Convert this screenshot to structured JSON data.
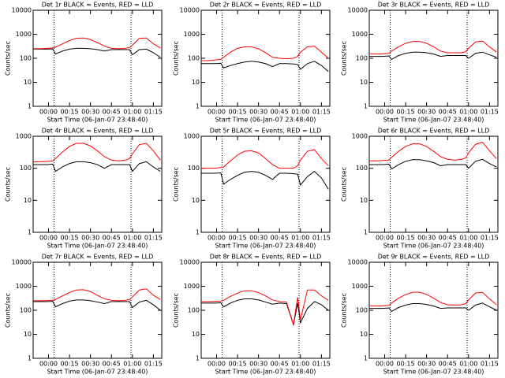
{
  "chart_data": [
    {
      "type": "line",
      "title": "Det 1r BLACK = Events, RED = LLD",
      "xlabel": "Start Time (06-Jan-07 23:48:40)",
      "ylabel": "Counts/sec",
      "log": true,
      "x": [
        -11,
        -6,
        -1,
        3,
        5,
        10,
        15,
        20,
        25,
        30,
        35,
        40,
        45,
        50,
        55,
        58,
        60,
        65,
        70,
        75,
        80
      ],
      "series": [
        {
          "color": "#000000",
          "values": [
            240,
            240,
            240,
            245,
            150,
            200,
            240,
            260,
            260,
            250,
            230,
            200,
            230,
            230,
            230,
            230,
            140,
            230,
            240,
            170,
            110
          ]
        },
        {
          "color": "#ff0000",
          "values": [
            250,
            250,
            260,
            270,
            290,
            400,
            550,
            680,
            700,
            600,
            450,
            320,
            260,
            250,
            260,
            280,
            350,
            680,
            700,
            400,
            270
          ]
        }
      ],
      "xlim": [
        -11,
        81
      ],
      "xticks": [
        {
          "value": 0,
          "label": "00:00"
        },
        {
          "value": 15,
          "label": "00:15"
        },
        {
          "value": 30,
          "label": "00:30"
        },
        {
          "value": 45,
          "label": "00:45"
        },
        {
          "value": 60,
          "label": "01:00"
        },
        {
          "value": 75,
          "label": "01:15"
        }
      ],
      "ylim": [
        1,
        10000
      ],
      "yticks": [
        1,
        10,
        100,
        1000,
        10000
      ],
      "vlines": [
        4,
        59
      ]
    },
    {
      "type": "line",
      "title": "Det 2r BLACK = Events, RED = LLD",
      "xlabel": "Start Time (06-Jan-07 23:48:40)",
      "ylabel": "Counts/sec",
      "log": true,
      "x": [
        -11,
        -6,
        -1,
        3,
        5,
        10,
        15,
        20,
        25,
        30,
        35,
        40,
        45,
        50,
        55,
        58,
        60,
        65,
        70,
        75,
        80
      ],
      "series": [
        {
          "color": "#000000",
          "values": [
            60,
            60,
            60,
            62,
            40,
            50,
            60,
            70,
            75,
            70,
            60,
            45,
            60,
            60,
            58,
            55,
            35,
            60,
            75,
            50,
            28
          ]
        },
        {
          "color": "#ff0000",
          "values": [
            80,
            80,
            85,
            90,
            110,
            180,
            260,
            300,
            300,
            250,
            170,
            110,
            100,
            95,
            100,
            120,
            180,
            300,
            320,
            180,
            100
          ]
        }
      ],
      "xlim": [
        -11,
        81
      ],
      "xticks": [
        {
          "value": 0,
          "label": "00:00"
        },
        {
          "value": 15,
          "label": "00:15"
        },
        {
          "value": 30,
          "label": "00:30"
        },
        {
          "value": 45,
          "label": "00:45"
        },
        {
          "value": 60,
          "label": "01:00"
        },
        {
          "value": 75,
          "label": "01:15"
        }
      ],
      "ylim": [
        1,
        10000
      ],
      "yticks": [
        1,
        10,
        100,
        1000,
        10000
      ],
      "vlines": [
        4,
        59
      ]
    },
    {
      "type": "line",
      "title": "Det 3r BLACK = Events, RED = LLD",
      "xlabel": "Start Time (06-Jan-07 23:48:40)",
      "ylabel": "Counts/sec",
      "log": true,
      "x": [
        -11,
        -6,
        -1,
        3,
        5,
        10,
        15,
        20,
        25,
        30,
        35,
        40,
        45,
        50,
        55,
        58,
        60,
        65,
        70,
        75,
        80
      ],
      "series": [
        {
          "color": "#000000",
          "values": [
            120,
            120,
            120,
            125,
            90,
            130,
            160,
            180,
            180,
            170,
            150,
            120,
            130,
            130,
            130,
            130,
            100,
            160,
            180,
            140,
            110
          ]
        },
        {
          "color": "#ff0000",
          "values": [
            150,
            150,
            155,
            160,
            200,
            300,
            420,
            500,
            500,
            420,
            300,
            200,
            170,
            170,
            170,
            190,
            260,
            480,
            520,
            300,
            180
          ]
        }
      ],
      "xlim": [
        -11,
        81
      ],
      "xticks": [
        {
          "value": 0,
          "label": "00:00"
        },
        {
          "value": 15,
          "label": "00:15"
        },
        {
          "value": 30,
          "label": "00:30"
        },
        {
          "value": 45,
          "label": "00:45"
        },
        {
          "value": 60,
          "label": "01:00"
        },
        {
          "value": 75,
          "label": "01:15"
        }
      ],
      "ylim": [
        1,
        10000
      ],
      "yticks": [
        1,
        10,
        100,
        1000,
        10000
      ],
      "vlines": [
        4,
        59
      ]
    },
    {
      "type": "line",
      "title": "Det 4r BLACK = Events, RED = LLD",
      "xlabel": "Start Time (06-Jan-07 23:48:40)",
      "ylabel": "Counts/sec",
      "log": true,
      "x": [
        -11,
        -6,
        -1,
        3,
        5,
        10,
        15,
        20,
        25,
        30,
        35,
        40,
        45,
        50,
        55,
        58,
        60,
        65,
        70,
        75,
        80
      ],
      "series": [
        {
          "color": "#000000",
          "values": [
            130,
            130,
            130,
            135,
            80,
            110,
            140,
            160,
            160,
            150,
            130,
            100,
            130,
            130,
            130,
            130,
            80,
            140,
            160,
            110,
            80
          ]
        },
        {
          "color": "#ff0000",
          "values": [
            160,
            160,
            165,
            170,
            200,
            320,
            480,
            600,
            600,
            500,
            350,
            230,
            180,
            170,
            180,
            200,
            280,
            550,
            600,
            350,
            180
          ]
        }
      ],
      "xlim": [
        -11,
        81
      ],
      "xticks": [
        {
          "value": 0,
          "label": "00:00"
        },
        {
          "value": 15,
          "label": "00:15"
        },
        {
          "value": 30,
          "label": "00:30"
        },
        {
          "value": 45,
          "label": "00:45"
        },
        {
          "value": 60,
          "label": "01:00"
        },
        {
          "value": 75,
          "label": "01:15"
        }
      ],
      "ylim": [
        1,
        1000
      ],
      "yticks": [
        1,
        10,
        100,
        1000
      ],
      "vlines": [
        4,
        59
      ]
    },
    {
      "type": "line",
      "title": "Det 5r BLACK = Events, RED = LLD",
      "xlabel": "Start Time (06-Jan-07 23:48:40)",
      "ylabel": "Counts/sec",
      "log": true,
      "x": [
        -11,
        -6,
        -1,
        3,
        5,
        10,
        15,
        20,
        25,
        30,
        35,
        40,
        45,
        50,
        55,
        58,
        60,
        65,
        70,
        75,
        80
      ],
      "series": [
        {
          "color": "#000000",
          "values": [
            70,
            70,
            70,
            72,
            32,
            45,
            60,
            75,
            80,
            75,
            60,
            45,
            70,
            70,
            68,
            65,
            30,
            55,
            80,
            50,
            22
          ]
        },
        {
          "color": "#ff0000",
          "values": [
            100,
            100,
            100,
            105,
            110,
            170,
            260,
            340,
            350,
            300,
            200,
            130,
            100,
            100,
            100,
            120,
            180,
            340,
            380,
            200,
            120
          ]
        }
      ],
      "xlim": [
        -11,
        81
      ],
      "xticks": [
        {
          "value": 0,
          "label": "00:00"
        },
        {
          "value": 15,
          "label": "00:15"
        },
        {
          "value": 30,
          "label": "00:30"
        },
        {
          "value": 45,
          "label": "00:45"
        },
        {
          "value": 60,
          "label": "01:00"
        },
        {
          "value": 75,
          "label": "01:15"
        }
      ],
      "ylim": [
        1,
        1000
      ],
      "yticks": [
        1,
        10,
        100,
        1000
      ],
      "vlines": [
        4,
        59
      ]
    },
    {
      "type": "line",
      "title": "Det 6r BLACK = Events, RED = LLD",
      "xlabel": "Start Time (06-Jan-07 23:48:40)",
      "ylabel": "Counts/sec",
      "log": true,
      "x": [
        -11,
        -6,
        -1,
        3,
        5,
        10,
        15,
        20,
        25,
        30,
        35,
        40,
        45,
        50,
        55,
        58,
        60,
        65,
        70,
        75,
        80
      ],
      "series": [
        {
          "color": "#000000",
          "values": [
            130,
            130,
            130,
            135,
            95,
            130,
            165,
            185,
            185,
            170,
            150,
            120,
            130,
            130,
            130,
            130,
            100,
            165,
            190,
            140,
            110
          ]
        },
        {
          "color": "#ff0000",
          "values": [
            170,
            170,
            175,
            180,
            220,
            340,
            480,
            580,
            580,
            480,
            340,
            230,
            190,
            180,
            190,
            210,
            300,
            560,
            650,
            350,
            200
          ]
        }
      ],
      "xlim": [
        -11,
        81
      ],
      "xticks": [
        {
          "value": 0,
          "label": "00:00"
        },
        {
          "value": 15,
          "label": "00:15"
        },
        {
          "value": 30,
          "label": "00:30"
        },
        {
          "value": 45,
          "label": "00:45"
        },
        {
          "value": 60,
          "label": "01:00"
        },
        {
          "value": 75,
          "label": "01:15"
        }
      ],
      "ylim": [
        1,
        1000
      ],
      "yticks": [
        1,
        10,
        100,
        1000
      ],
      "vlines": [
        4,
        59
      ]
    },
    {
      "type": "line",
      "title": "Det 7r BLACK = Events, RED = LLD",
      "xlabel": "Start Time (06-Jan-07 23:48:40)",
      "ylabel": "Counts/sec",
      "log": true,
      "x": [
        -11,
        -6,
        -1,
        3,
        5,
        10,
        15,
        20,
        25,
        30,
        35,
        40,
        45,
        50,
        55,
        58,
        60,
        65,
        70,
        75,
        80
      ],
      "series": [
        {
          "color": "#000000",
          "values": [
            230,
            230,
            230,
            235,
            140,
            190,
            240,
            270,
            270,
            250,
            220,
            190,
            230,
            230,
            230,
            230,
            130,
            220,
            260,
            170,
            100
          ]
        },
        {
          "color": "#ff0000",
          "values": [
            250,
            250,
            255,
            260,
            280,
            400,
            550,
            700,
            720,
            600,
            420,
            300,
            260,
            250,
            260,
            280,
            360,
            700,
            780,
            420,
            280
          ]
        }
      ],
      "xlim": [
        -11,
        81
      ],
      "xticks": [
        {
          "value": 0,
          "label": "00:00"
        },
        {
          "value": 15,
          "label": "00:15"
        },
        {
          "value": 30,
          "label": "00:30"
        },
        {
          "value": 45,
          "label": "00:45"
        },
        {
          "value": 60,
          "label": "01:00"
        },
        {
          "value": 75,
          "label": "01:15"
        }
      ],
      "ylim": [
        1,
        10000
      ],
      "yticks": [
        1,
        10,
        100,
        1000,
        10000
      ],
      "vlines": [
        4,
        59
      ]
    },
    {
      "type": "line",
      "title": "Det 8r BLACK = Events, RED = LLD",
      "xlabel": "Start Time (06-Jan-07 23:48:40)",
      "ylabel": "Counts/sec",
      "log": true,
      "x": [
        -11,
        -6,
        -1,
        3,
        5,
        10,
        15,
        20,
        25,
        30,
        35,
        40,
        45,
        50,
        55,
        58,
        60,
        65,
        70,
        75,
        80
      ],
      "series": [
        {
          "color": "#000000",
          "values": [
            200,
            200,
            200,
            205,
            140,
            200,
            260,
            300,
            300,
            270,
            220,
            180,
            200,
            190,
            25,
            200,
            30,
            120,
            230,
            170,
            100
          ]
        },
        {
          "color": "#ff0000",
          "values": [
            230,
            230,
            235,
            240,
            260,
            380,
            520,
            650,
            650,
            550,
            400,
            270,
            230,
            220,
            25,
            350,
            40,
            700,
            700,
            400,
            260
          ]
        }
      ],
      "xlim": [
        -11,
        81
      ],
      "xticks": [
        {
          "value": 0,
          "label": "00:00"
        },
        {
          "value": 15,
          "label": "00:15"
        },
        {
          "value": 30,
          "label": "00:30"
        },
        {
          "value": 45,
          "label": "00:45"
        },
        {
          "value": 60,
          "label": "01:00"
        },
        {
          "value": 75,
          "label": "01:15"
        }
      ],
      "ylim": [
        1,
        10000
      ],
      "yticks": [
        1,
        10,
        100,
        1000,
        10000
      ],
      "vlines": [
        4,
        59
      ]
    },
    {
      "type": "line",
      "title": "Det 9r BLACK = Events, RED = LLD",
      "xlabel": "Start Time (06-Jan-07 23:48:40)",
      "ylabel": "Counts/sec",
      "log": true,
      "x": [
        -11,
        -6,
        -1,
        3,
        5,
        10,
        15,
        20,
        25,
        30,
        35,
        40,
        45,
        50,
        55,
        58,
        60,
        65,
        70,
        75,
        80
      ],
      "series": [
        {
          "color": "#000000",
          "values": [
            120,
            120,
            120,
            125,
            90,
            130,
            165,
            190,
            190,
            175,
            150,
            120,
            125,
            125,
            125,
            125,
            100,
            165,
            200,
            140,
            100
          ]
        },
        {
          "color": "#ff0000",
          "values": [
            150,
            150,
            155,
            160,
            200,
            320,
            450,
            560,
            560,
            460,
            320,
            210,
            170,
            165,
            170,
            190,
            270,
            520,
            560,
            300,
            170
          ]
        }
      ],
      "xlim": [
        -11,
        81
      ],
      "xticks": [
        {
          "value": 0,
          "label": "00:00"
        },
        {
          "value": 15,
          "label": "00:15"
        },
        {
          "value": 30,
          "label": "00:30"
        },
        {
          "value": 45,
          "label": "00:45"
        },
        {
          "value": 60,
          "label": "01:00"
        },
        {
          "value": 75,
          "label": "01:15"
        }
      ],
      "ylim": [
        1,
        10000
      ],
      "yticks": [
        1,
        10,
        100,
        1000,
        10000
      ],
      "vlines": [
        4,
        59
      ]
    }
  ]
}
